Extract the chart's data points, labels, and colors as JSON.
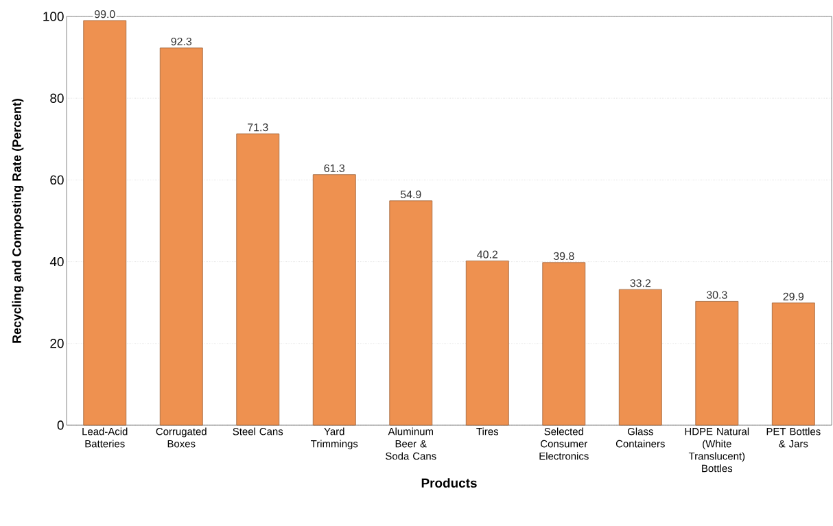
{
  "chart_data": {
    "type": "bar",
    "xlabel": "Products",
    "ylabel": "Recycling and Composting Rate (Percent)",
    "categories": [
      "Lead-Acid Batteries",
      "Corrugated Boxes",
      "Steel Cans",
      "Yard Trimmings",
      "Aluminum Beer & Soda Cans",
      "Tires",
      "Selected Consumer Electronics",
      "Glass Containers",
      "HDPE Natural (White Translucent) Bottles",
      "PET Bottles & Jars"
    ],
    "values": [
      99.0,
      92.3,
      71.3,
      61.3,
      54.9,
      40.2,
      39.8,
      33.2,
      30.3,
      29.9
    ],
    "value_labels": [
      "99.0",
      "92.3",
      "71.3",
      "61.3",
      "54.9",
      "40.2",
      "39.8",
      "33.2",
      "30.3",
      "29.9"
    ],
    "color": "#ee9150",
    "ylim": [
      0,
      100
    ],
    "yticks": [
      0,
      20,
      40,
      60,
      80,
      100
    ],
    "grid": "y"
  }
}
